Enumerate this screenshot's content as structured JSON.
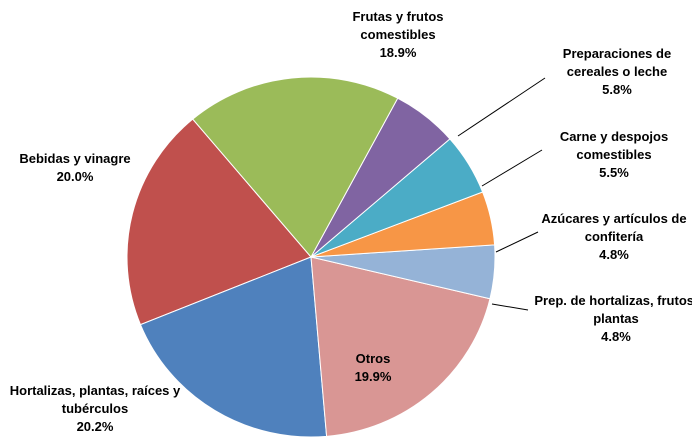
{
  "chart_data": {
    "type": "pie",
    "categories": [
      "Frutas y frutos comestibles",
      "Preparaciones de cereales  o leche",
      "Carne y despojos comestibles",
      "Azúcares y artículos de confitería",
      "Prep. de hortalizas, frutos, plantas",
      "Otros",
      "Hortalizas,  plantas, raíces y tubérculos",
      "Bebidas  y vinagre"
    ],
    "values": [
      18.9,
      5.8,
      5.5,
      4.8,
      4.8,
      19.9,
      20.2,
      20.0
    ],
    "value_labels": [
      "18.9%",
      "5.8%",
      "5.5%",
      "4.8%",
      "4.8%",
      "19.9%",
      "20.2%",
      "20.0%"
    ],
    "colors": [
      "#9bbb59",
      "#8064a2",
      "#4bacc6",
      "#f79646",
      "#95b3d7",
      "#d99694",
      "#4f81bd",
      "#c0504d"
    ]
  }
}
